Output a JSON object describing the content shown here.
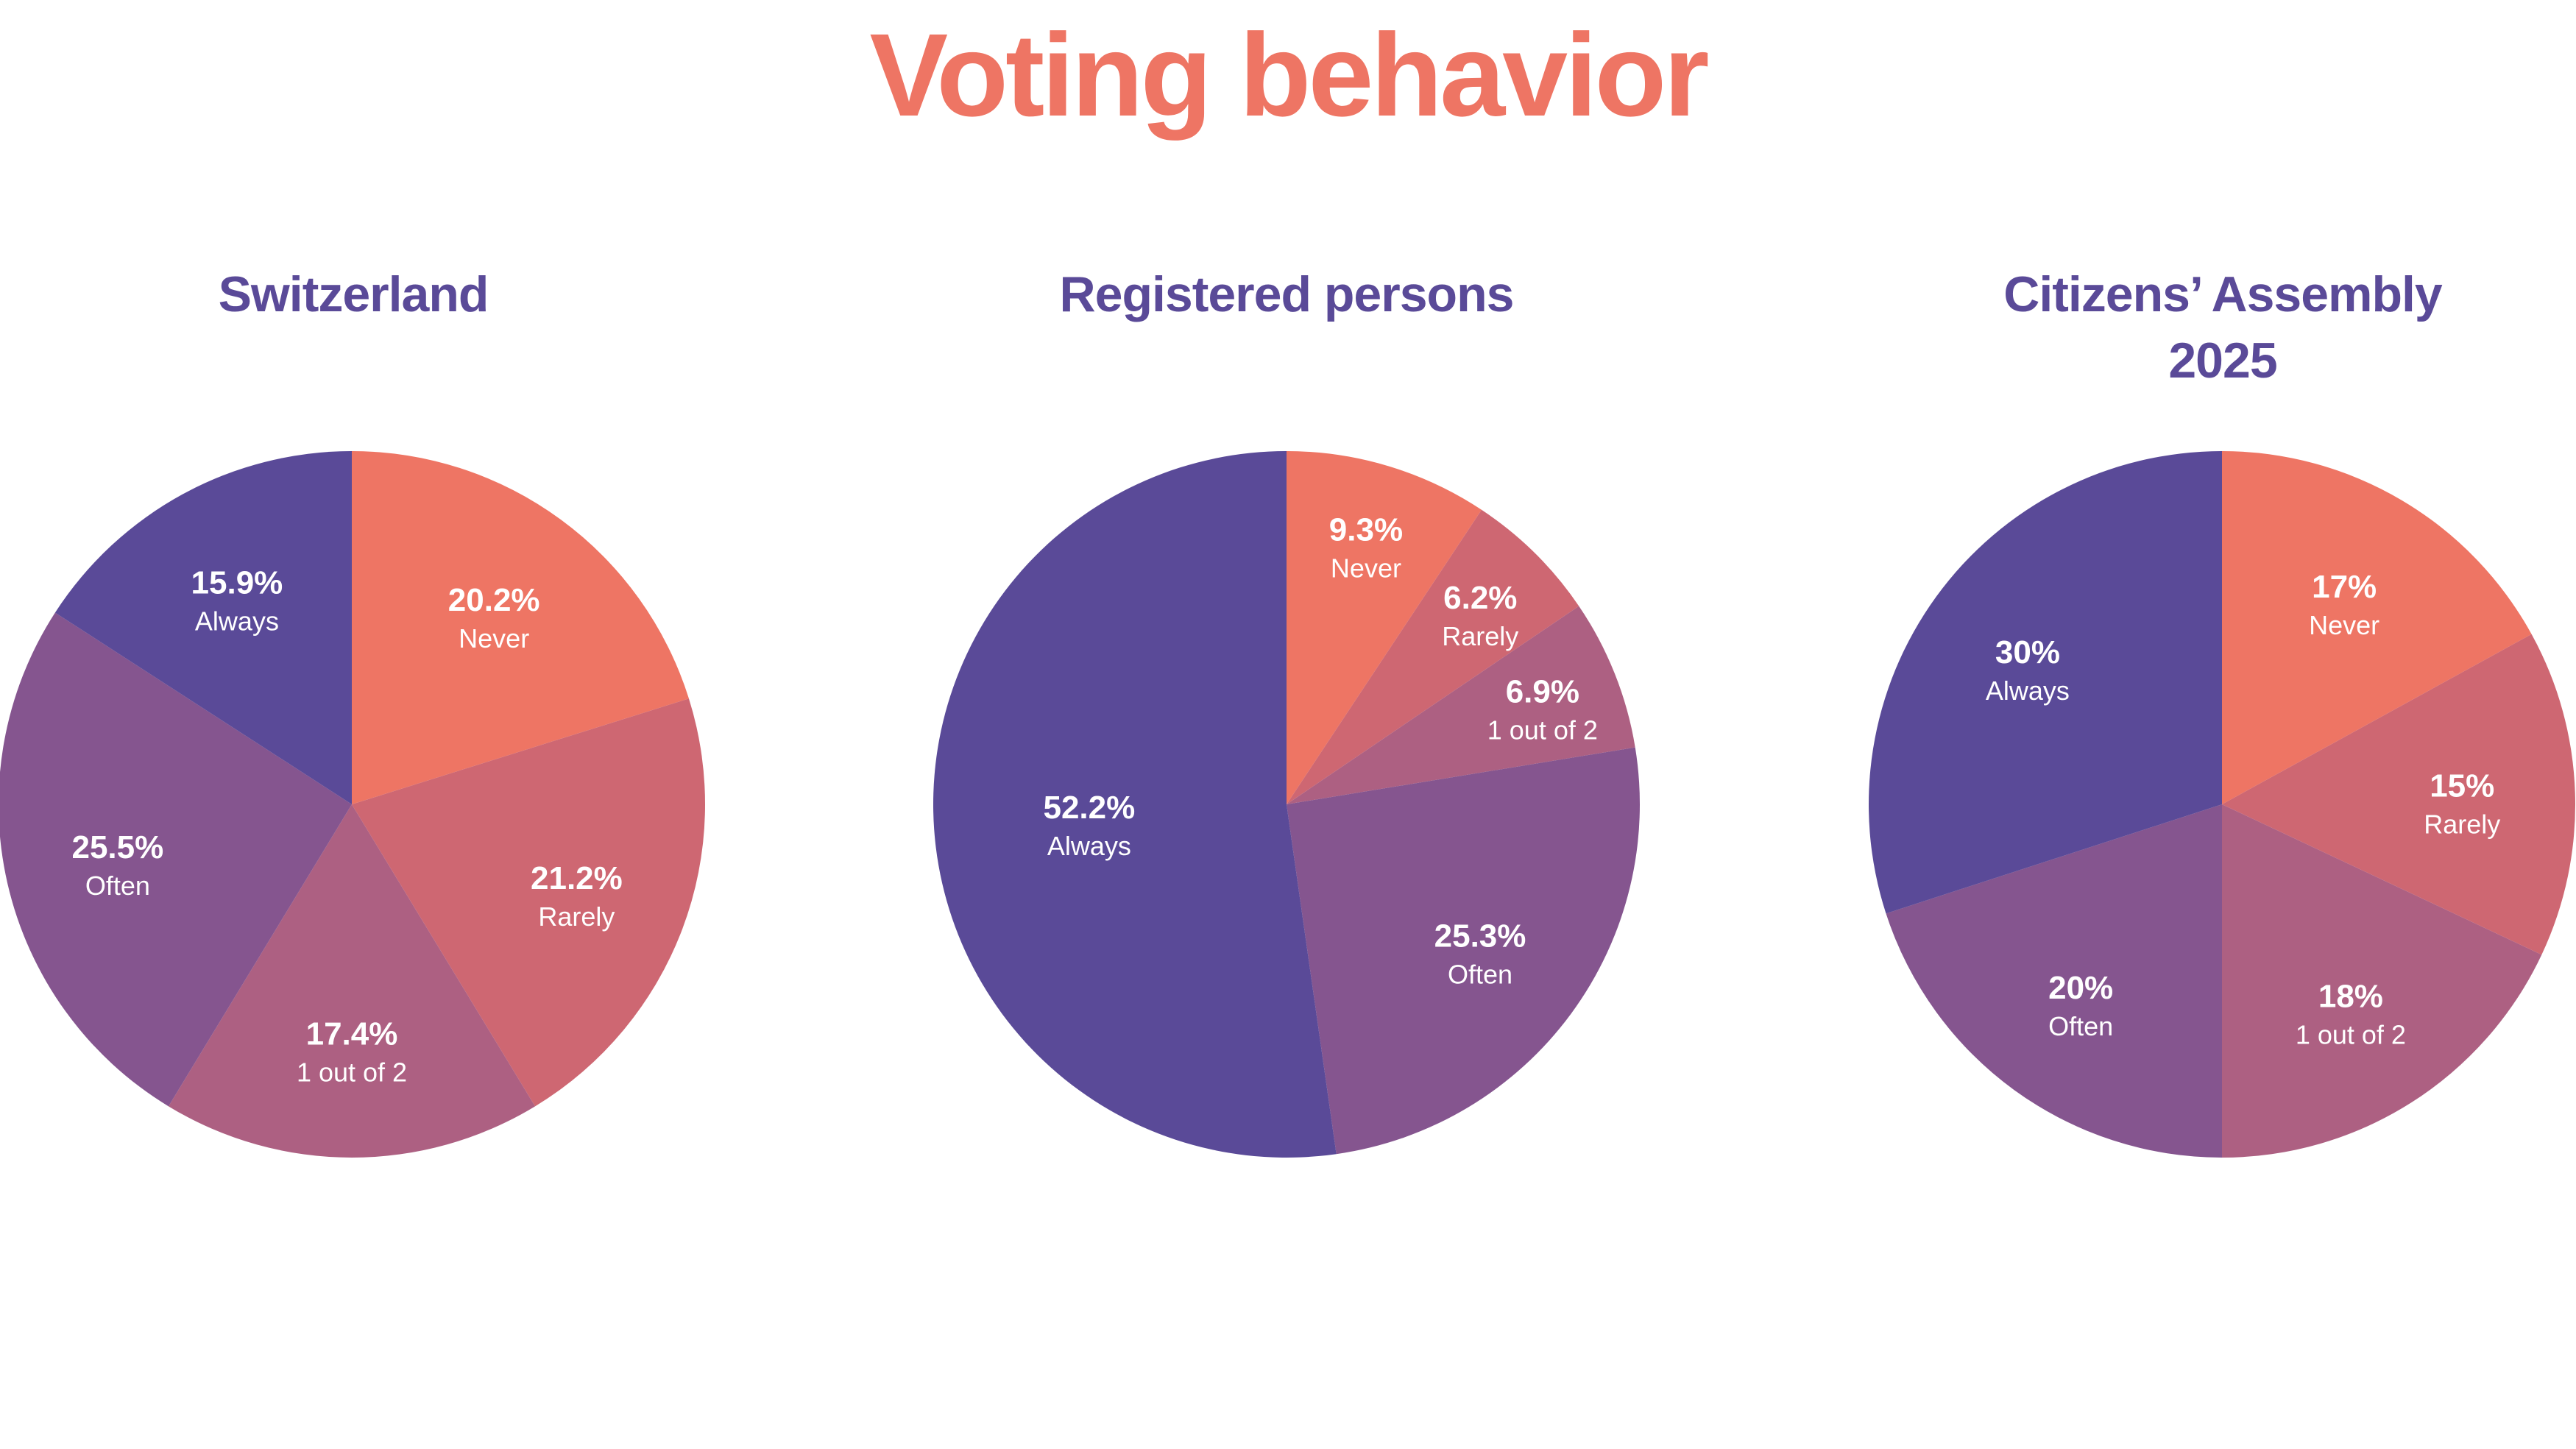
{
  "title": "Voting behavior",
  "colors": {
    "title": "#EE7564",
    "subtitle": "#5A4A98",
    "Never": "#EE7564",
    "Rarely": "#CE6772",
    "1 out of 2": "#AD6082",
    "Often": "#85558F",
    "Always": "#5A4A98"
  },
  "chart_data": [
    {
      "type": "pie",
      "title": "Switzerland",
      "categories": [
        "Never",
        "Rarely",
        "1 out of 2",
        "Often",
        "Always"
      ],
      "values": [
        20.2,
        21.2,
        17.4,
        25.5,
        15.9
      ],
      "labels": [
        "20.2%",
        "21.2%",
        "17.4%",
        "25.5%",
        "15.9%"
      ],
      "start": "top",
      "direction": "clockwise"
    },
    {
      "type": "pie",
      "title": "Registered persons",
      "categories": [
        "Never",
        "Rarely",
        "1 out of 2",
        "Often",
        "Always"
      ],
      "values": [
        9.3,
        6.2,
        6.9,
        25.3,
        52.2
      ],
      "labels": [
        "9.3%",
        "6.2%",
        "6.9%",
        "25.3%",
        "52.2%"
      ],
      "start": "top",
      "direction": "clockwise"
    },
    {
      "type": "pie",
      "title": "Citizens’ Assembly 2025",
      "categories": [
        "Never",
        "Rarely",
        "1 out of 2",
        "Often",
        "Always"
      ],
      "values": [
        17,
        15,
        18,
        20,
        30
      ],
      "labels": [
        "17%",
        "15%",
        "18%",
        "20%",
        "30%"
      ],
      "start": "top",
      "direction": "clockwise"
    }
  ]
}
